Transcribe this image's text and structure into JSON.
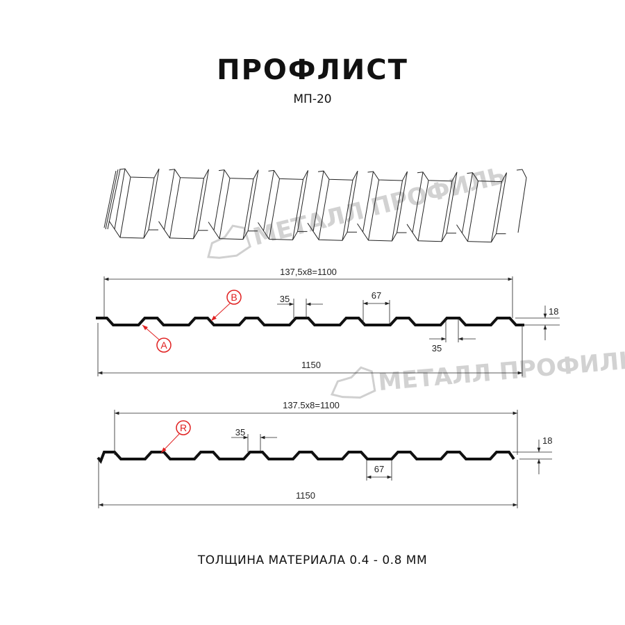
{
  "header": {
    "title": "ПРОФЛИСТ",
    "subtitle": "МП-20"
  },
  "watermark": "МЕТАЛЛ ПРОФИЛЬ",
  "profile_a": {
    "pitch_dim": "137,5x8=1100",
    "total_dim": "1150",
    "top_width_dim": "35",
    "bottom_top_dim": "67",
    "bottom_width_dim": "35",
    "height_dim": "18",
    "labels": [
      "A",
      "B"
    ]
  },
  "profile_b": {
    "pitch_dim": "137.5x8=1100",
    "total_dim": "1150",
    "top_width_dim": "35",
    "bottom_dim": "67",
    "height_dim": "18",
    "labels": [
      "R"
    ]
  },
  "footer": "ТОЛЩИНА МАТЕРИАЛА 0.4 - 0.8 ММ",
  "colors": {
    "profile": "#111111",
    "callout": "#e02020",
    "watermark": "#c8c8c8"
  }
}
